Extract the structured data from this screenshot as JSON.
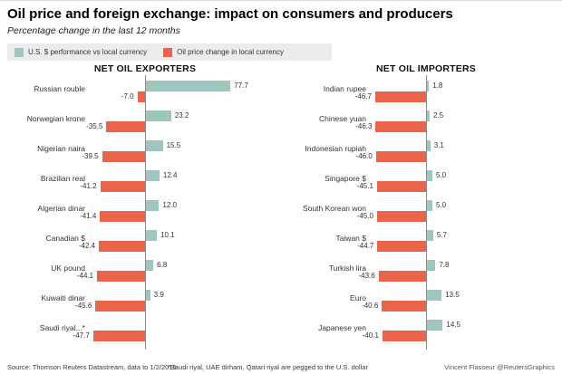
{
  "title": "Oil price and foreign exchange: impact on consumers and producers",
  "subtitle": "Percentage change in the last 12 months",
  "colors": {
    "usd_bar": "#9fc5bf",
    "oil_bar": "#e8654c",
    "legend_bg": "#ececec",
    "axis": "#8a8a8a"
  },
  "chart_data": [
    {
      "type": "bar",
      "orientation": "horizontal-diverging",
      "title": "NET OIL EXPORTERS",
      "legend_position": "top-left",
      "xlim": [
        -50,
        80
      ],
      "categories": [
        "Russian rouble",
        "Norwegian krone",
        "Nigerian naira",
        "Brazilian real",
        "Algerian dinar",
        "Canadian $",
        "UK pound",
        "Kuwaiti dinar",
        "Saudi riyal...*"
      ],
      "series": [
        {
          "name": "U.S. $ performance vs local currency",
          "color": "#9fc5bf",
          "values": [
            77.7,
            23.2,
            15.5,
            12.4,
            12.0,
            10.1,
            6.8,
            3.9,
            null
          ]
        },
        {
          "name": "Oil price change in local currency",
          "color": "#e8654c",
          "values": [
            -7.0,
            -35.5,
            -39.5,
            -41.2,
            -41.4,
            -42.4,
            -44.1,
            -45.6,
            -47.7
          ]
        }
      ]
    },
    {
      "type": "bar",
      "orientation": "horizontal-diverging",
      "title": "NET OIL IMPORTERS",
      "legend_position": "top-left",
      "xlim": [
        -50,
        80
      ],
      "categories": [
        "Indian rupee",
        "Chinese yuan",
        "Indonesian rupiah",
        "Singapore $",
        "South Korean won",
        "Taiwan $",
        "Turkish lira",
        "Euro",
        "Japanese yen"
      ],
      "series": [
        {
          "name": "U.S. $ performance vs local currency",
          "color": "#9fc5bf",
          "values": [
            1.8,
            2.5,
            3.1,
            5.0,
            5.0,
            5.7,
            7.8,
            13.5,
            14.5
          ]
        },
        {
          "name": "Oil price change in local currency",
          "color": "#e8654c",
          "values": [
            -46.7,
            -46.3,
            -46.0,
            -45.1,
            -45.0,
            -44.7,
            -43.6,
            -40.6,
            -40.1
          ]
        }
      ]
    }
  ],
  "footer": {
    "source": "Source: Thomson Reuters Datastream, data to 1/2/2015",
    "note": "*Saudi riyal, UAE dirham, Qatari riyal are pegged to the U.S. dollar",
    "credit": "Vincent Flasseur @ReutersGraphics"
  }
}
